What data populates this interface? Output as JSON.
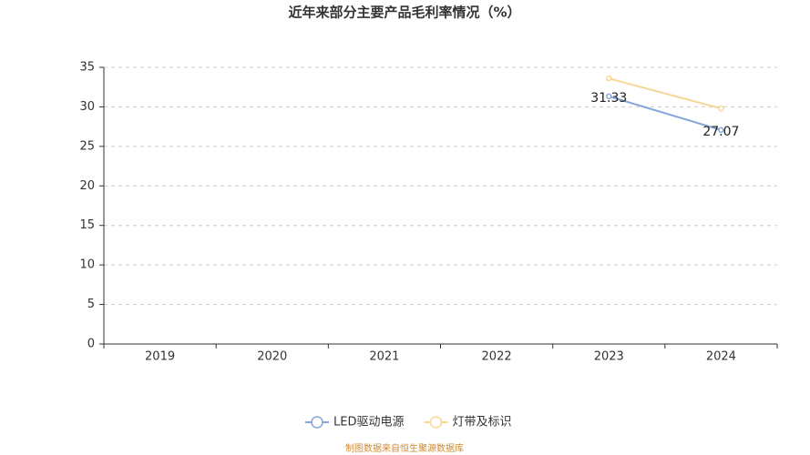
{
  "chart_data": {
    "type": "line",
    "title": "近年来部分主要产品毛利率情况（%）",
    "categories": [
      "2019",
      "2020",
      "2021",
      "2022",
      "2023",
      "2024"
    ],
    "series": [
      {
        "name": "LED驱动电源",
        "color": "#86a6da",
        "values": [
          null,
          null,
          null,
          null,
          31.33,
          27.07
        ],
        "show_labels": true
      },
      {
        "name": "灯带及标识",
        "color": "#f7d797",
        "values": [
          null,
          null,
          null,
          null,
          33.6,
          29.8
        ],
        "show_labels": false
      }
    ],
    "ylim": [
      0,
      35
    ],
    "yticks": [
      0,
      5,
      10,
      15,
      20,
      25,
      30,
      35
    ],
    "grid": true,
    "legend": "bottom",
    "source": "制图数据来自恒生聚源数据库"
  }
}
